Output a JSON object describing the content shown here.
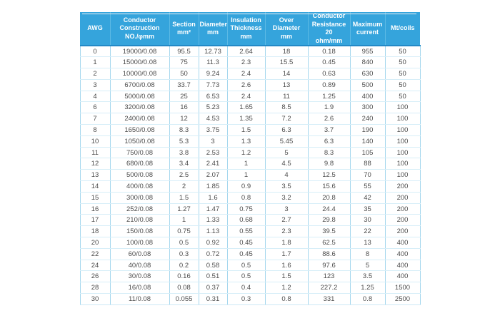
{
  "colors": {
    "header_background": "#35a4dc",
    "header_text": "#ffffff",
    "header_separator": "#5cb9e5",
    "header_bottom_border": "#2389c6",
    "body_vertical_border": "#a5d7ee",
    "body_horizontal_border": "#d7eef8",
    "body_text": "#4d4d4d"
  },
  "chart_data": {
    "type": "table",
    "title": "AWG wire specification table",
    "columns": [
      {
        "key": "awg",
        "label": "AWG"
      },
      {
        "key": "conductor-construction",
        "label": "Conductor\nConstruction\nNO./φmm"
      },
      {
        "key": "section",
        "label": "Section\nmm²"
      },
      {
        "key": "diameter",
        "label": "Diameter\nmm"
      },
      {
        "key": "insulation-thickness",
        "label": "Insulation\nThickness\nmm"
      },
      {
        "key": "over-diameter",
        "label": "Over Diameter\nmm"
      },
      {
        "key": "conductor-resistance",
        "label": "Conductor\nResistance 20\nohm/mm"
      },
      {
        "key": "maximum-current",
        "label": "Maximum\ncurrent"
      },
      {
        "key": "mt-coils",
        "label": "Mt/coils"
      }
    ],
    "rows": [
      [
        "0",
        "19000/0.08",
        "95.5",
        "12.73",
        "2.64",
        "18",
        "0.18",
        "955",
        "50"
      ],
      [
        "1",
        "15000/0.08",
        "75",
        "11.3",
        "2.3",
        "15.5",
        "0.45",
        "840",
        "50"
      ],
      [
        "2",
        "10000/0.08",
        "50",
        "9.24",
        "2.4",
        "14",
        "0.63",
        "630",
        "50"
      ],
      [
        "3",
        "6700/0.08",
        "33.7",
        "7.73",
        "2.6",
        "13",
        "0.89",
        "500",
        "50"
      ],
      [
        "4",
        "5000/0.08",
        "25",
        "6.53",
        "2.4",
        "11",
        "1.25",
        "400",
        "50"
      ],
      [
        "6",
        "3200/0.08",
        "16",
        "5.23",
        "1.65",
        "8.5",
        "1.9",
        "300",
        "100"
      ],
      [
        "7",
        "2400/0.08",
        "12",
        "4.53",
        "1.35",
        "7.2",
        "2.6",
        "240",
        "100"
      ],
      [
        "8",
        "1650/0.08",
        "8.3",
        "3.75",
        "1.5",
        "6.3",
        "3.7",
        "190",
        "100"
      ],
      [
        "10",
        "1050/0.08",
        "5.3",
        "3",
        "1.3",
        "5.45",
        "6.3",
        "140",
        "100"
      ],
      [
        "11",
        "750/0.08",
        "3.8",
        "2.53",
        "1.2",
        "5",
        "8.3",
        "105",
        "100"
      ],
      [
        "12",
        "680/0.08",
        "3.4",
        "2.41",
        "1",
        "4.5",
        "9.8",
        "88",
        "100"
      ],
      [
        "13",
        "500/0.08",
        "2.5",
        "2.07",
        "1",
        "4",
        "12.5",
        "70",
        "100"
      ],
      [
        "14",
        "400/0.08",
        "2",
        "1.85",
        "0.9",
        "3.5",
        "15.6",
        "55",
        "200"
      ],
      [
        "15",
        "300/0.08",
        "1.5",
        "1.6",
        "0.8",
        "3.2",
        "20.8",
        "42",
        "200"
      ],
      [
        "16",
        "252/0.08",
        "1.27",
        "1.47",
        "0.75",
        "3",
        "24.4",
        "35",
        "200"
      ],
      [
        "17",
        "210/0.08",
        "1",
        "1.33",
        "0.68",
        "2.7",
        "29.8",
        "30",
        "200"
      ],
      [
        "18",
        "150/0.08",
        "0.75",
        "1.13",
        "0.55",
        "2.3",
        "39.5",
        "22",
        "200"
      ],
      [
        "20",
        "100/0.08",
        "0.5",
        "0.92",
        "0.45",
        "1.8",
        "62.5",
        "13",
        "400"
      ],
      [
        "22",
        "60/0.08",
        "0.3",
        "0.72",
        "0.45",
        "1.7",
        "88.6",
        "8",
        "400"
      ],
      [
        "24",
        "40/0.08",
        "0.2",
        "0.58",
        "0.5",
        "1.6",
        "97.6",
        "5",
        "400"
      ],
      [
        "26",
        "30/0.08",
        "0.16",
        "0.51",
        "0.5",
        "1.5",
        "123",
        "3.5",
        "400"
      ],
      [
        "28",
        "16/0.08",
        "0.08",
        "0.37",
        "0.4",
        "1.2",
        "227.2",
        "1.25",
        "1500"
      ],
      [
        "30",
        "11/0.08",
        "0.055",
        "0.31",
        "0.3",
        "0.8",
        "331",
        "0.8",
        "2500"
      ]
    ]
  }
}
